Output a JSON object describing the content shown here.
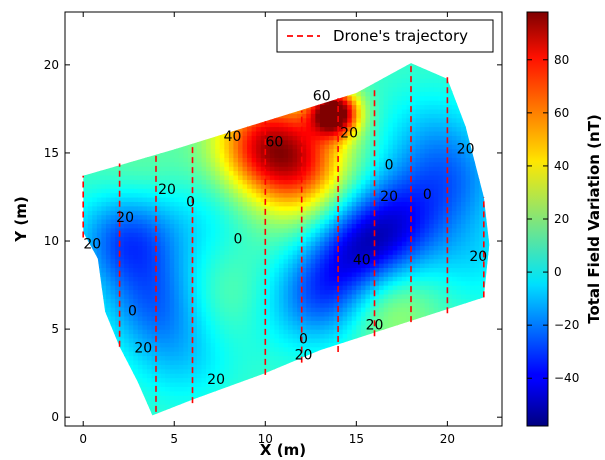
{
  "chart_data": {
    "type": "heatmap",
    "xlabel": "X (m)",
    "ylabel": "Y (m)",
    "xlim": [
      -1,
      23
    ],
    "ylim": [
      -0.5,
      23
    ],
    "xticks": [
      "0",
      "5",
      "10",
      "15",
      "20"
    ],
    "yticks": [
      "0",
      "5",
      "10",
      "15",
      "20"
    ],
    "colorbar": {
      "label": "Total Field Variation (nT)",
      "range": [
        -58,
        98
      ],
      "ticks": [
        "−40",
        "−20",
        "0",
        "20",
        "40",
        "60",
        "80"
      ],
      "colormap": "jet"
    },
    "legend": {
      "label": "Drone's trajectory",
      "position": "top-right",
      "color": "#ff0000",
      "style": "dashed"
    },
    "survey_boundary": [
      [
        0,
        13.7
      ],
      [
        5,
        15.2
      ],
      [
        10,
        16.8
      ],
      [
        15,
        18.4
      ],
      [
        18,
        20.1
      ],
      [
        20,
        19.2
      ],
      [
        21,
        16.5
      ],
      [
        22,
        12.5
      ],
      [
        22.3,
        9.8
      ],
      [
        22,
        6.8
      ],
      [
        19,
        5.8
      ],
      [
        16,
        4.8
      ],
      [
        13,
        3.8
      ],
      [
        10,
        2.5
      ],
      [
        6,
        1
      ],
      [
        3.8,
        0.1
      ],
      [
        3,
        2
      ],
      [
        2,
        4
      ],
      [
        1.2,
        6
      ],
      [
        0.8,
        9
      ],
      [
        0,
        10.5
      ]
    ],
    "field_sources": [
      {
        "x": 13.8,
        "y": 17.3,
        "amplitude": 98
      },
      {
        "x": 10,
        "y": 15.6,
        "amplitude": 60
      },
      {
        "x": 12,
        "y": 14.2,
        "amplitude": 45
      },
      {
        "x": 16.2,
        "y": 6.8,
        "amplitude": 30
      },
      {
        "x": 15.5,
        "y": 9.5,
        "amplitude": -48
      },
      {
        "x": 13.5,
        "y": 7,
        "amplitude": -40
      },
      {
        "x": 2.5,
        "y": 10.2,
        "amplitude": -38
      },
      {
        "x": 4,
        "y": 6.5,
        "amplitude": -28
      },
      {
        "x": 17.5,
        "y": 11.5,
        "amplitude": -30
      },
      {
        "x": 20.5,
        "y": 13.5,
        "amplitude": -22
      },
      {
        "x": 5.5,
        "y": 3.5,
        "amplitude": -15
      },
      {
        "x": 9.5,
        "y": 6,
        "amplitude": -10
      },
      {
        "x": 7,
        "y": 11.5,
        "amplitude": -10
      },
      {
        "x": 19,
        "y": 16,
        "amplitude": -15
      },
      {
        "x": 3,
        "y": 13.5,
        "amplitude": 8
      },
      {
        "x": 8,
        "y": 6.5,
        "amplitude": 15
      },
      {
        "x": 11.5,
        "y": 11,
        "amplitude": 5
      },
      {
        "x": 21.5,
        "y": 9,
        "amplitude": -12
      }
    ],
    "trajectory_lines": [
      {
        "x": 0,
        "y": [
          10.2,
          13.7
        ]
      },
      {
        "x": 2,
        "y": [
          4,
          14.4
        ]
      },
      {
        "x": 4,
        "y": [
          0.3,
          15
        ]
      },
      {
        "x": 6,
        "y": [
          0.8,
          15.5
        ]
      },
      {
        "x": 10,
        "y": [
          2.4,
          16.8
        ]
      },
      {
        "x": 12,
        "y": [
          3.1,
          17.4
        ]
      },
      {
        "x": 14,
        "y": [
          3.7,
          18.1
        ]
      },
      {
        "x": 16,
        "y": [
          4.6,
          18.6
        ]
      },
      {
        "x": 18,
        "y": [
          5.4,
          20.1
        ]
      },
      {
        "x": 20,
        "y": [
          5.9,
          19.3
        ]
      },
      {
        "x": 22,
        "y": [
          6.8,
          12.5
        ]
      }
    ],
    "contour_labels": [
      {
        "text": "60",
        "x": 13.1,
        "y": 18.2
      },
      {
        "text": "40",
        "x": 8.2,
        "y": 15.9
      },
      {
        "text": "60",
        "x": 10.5,
        "y": 15.6
      },
      {
        "text": "20",
        "x": 14.6,
        "y": 16.1
      },
      {
        "text": "0",
        "x": 5.9,
        "y": 12.2
      },
      {
        "text": "20",
        "x": 4.6,
        "y": 12.9
      },
      {
        "text": "20",
        "x": 21,
        "y": 15.2
      },
      {
        "text": "20",
        "x": 2.3,
        "y": 11.3
      },
      {
        "text": "20",
        "x": 0.5,
        "y": 9.8
      },
      {
        "text": "0",
        "x": 8.5,
        "y": 10.1
      },
      {
        "text": "0",
        "x": 16.8,
        "y": 14.3
      },
      {
        "text": "20",
        "x": 16.8,
        "y": 12.5
      },
      {
        "text": "0",
        "x": 18.9,
        "y": 12.6
      },
      {
        "text": "40",
        "x": 15.3,
        "y": 8.9
      },
      {
        "text": "20",
        "x": 21.7,
        "y": 9.1
      },
      {
        "text": "0",
        "x": 2.7,
        "y": 6
      },
      {
        "text": "20",
        "x": 3.3,
        "y": 3.9
      },
      {
        "text": "20",
        "x": 16,
        "y": 5.2
      },
      {
        "text": "0",
        "x": 12.1,
        "y": 4.4
      },
      {
        "text": "20",
        "x": 12.1,
        "y": 3.5
      },
      {
        "text": "20",
        "x": 7.3,
        "y": 2.1
      }
    ]
  }
}
